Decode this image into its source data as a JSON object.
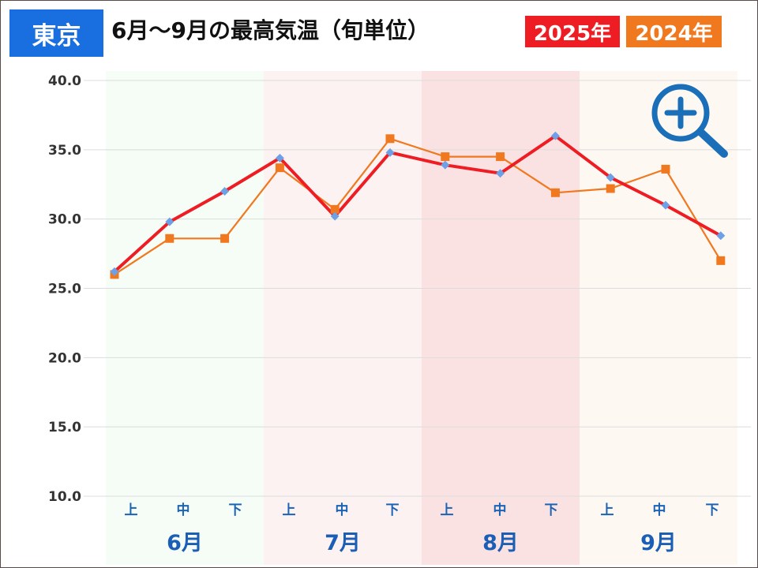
{
  "header": {
    "city": "東京",
    "title": "6月～9月の最高気温（旬単位）"
  },
  "legend": [
    {
      "label": "2025年",
      "color": "#ee1d23"
    },
    {
      "label": "2024年",
      "color": "#f0781e"
    }
  ],
  "zoom_control": {
    "icon": "zoom-in-icon",
    "color": "#1a6fb8"
  },
  "chart_data": {
    "type": "line",
    "categories": [
      "上",
      "中",
      "下",
      "上",
      "中",
      "下",
      "上",
      "中",
      "下",
      "上",
      "中",
      "下"
    ],
    "months": [
      {
        "label": "6月",
        "bg": "#f6fcf6"
      },
      {
        "label": "7月",
        "bg": "#fcf2f2"
      },
      {
        "label": "8月",
        "bg": "#fbe2e2"
      },
      {
        "label": "9月",
        "bg": "#fef8f3"
      }
    ],
    "yticks": [
      "10.0",
      "15.0",
      "20.0",
      "25.0",
      "30.0",
      "35.0",
      "40.0"
    ],
    "ylim": [
      10,
      40
    ],
    "grid": true,
    "legend_position": "top",
    "series": [
      {
        "name": "2025年",
        "color": "#ee1d23",
        "marker_color": "#6ea0e6",
        "marker": "diamond",
        "values": [
          26.2,
          29.8,
          32.0,
          34.4,
          30.2,
          34.8,
          33.9,
          33.3,
          36.0,
          33.0,
          31.0,
          28.8
        ]
      },
      {
        "name": "2024年",
        "color": "#f0781e",
        "marker_color": "#f0781e",
        "marker": "square",
        "values": [
          26.0,
          28.6,
          28.6,
          33.7,
          30.7,
          35.8,
          34.5,
          34.5,
          31.9,
          32.2,
          33.6,
          27.0
        ]
      }
    ]
  }
}
